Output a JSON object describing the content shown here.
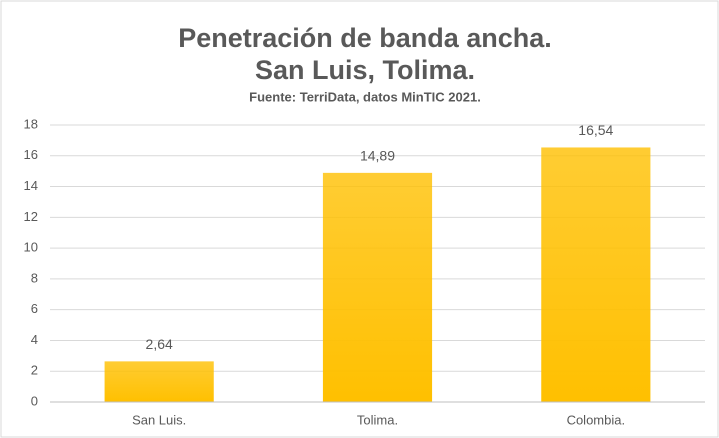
{
  "chart_data": {
    "type": "bar",
    "title": "Penetración de banda ancha.",
    "subtitle_line": "San Luis, Tolima.",
    "source": "Fuente: TerriData, datos MinTIC 2021.",
    "categories": [
      "San Luis.",
      "Tolima.",
      "Colombia."
    ],
    "values": [
      2.64,
      14.89,
      16.54
    ],
    "value_labels": [
      "2,64",
      "14,89",
      "16,54"
    ],
    "color": "#ffc000",
    "ylim": [
      0,
      18
    ],
    "yticks": [
      0,
      2,
      4,
      6,
      8,
      10,
      12,
      14,
      16,
      18
    ],
    "grid": true
  }
}
